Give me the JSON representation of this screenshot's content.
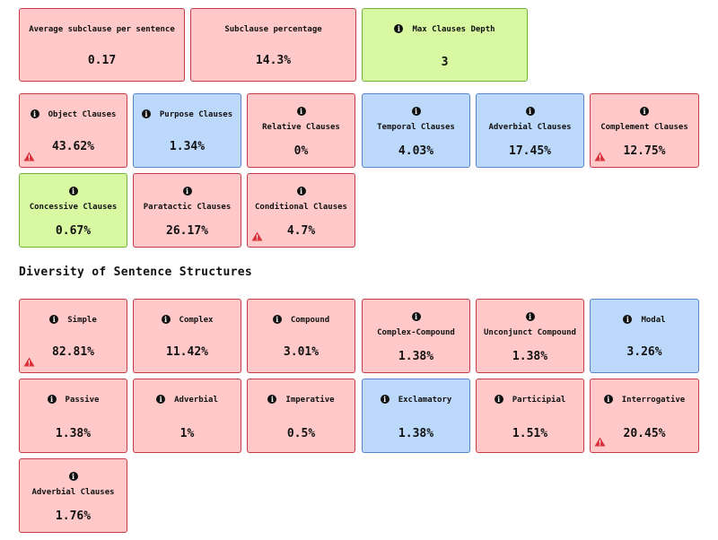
{
  "metrics_top": [
    {
      "label": "Average subclause per sentence",
      "value": "0.17",
      "color": "#ffc9c9"
    },
    {
      "label": "Subclause percentage",
      "value": "14.3%",
      "color": "#ffc9c9"
    },
    {
      "label": "Max Clauses Depth",
      "value": "3",
      "color": "#d8f9a1",
      "icon": "info-icon"
    }
  ],
  "clause_types": [
    {
      "label": "Object Clauses",
      "value": "43.62%",
      "status": "red",
      "icon": "info-icon",
      "warning": true
    },
    {
      "label": "Purpose Clauses",
      "value": "1.34%",
      "status": "blue",
      "icon": "info-icon"
    },
    {
      "label": "Relative Clauses",
      "value": "0%",
      "status": "red",
      "icon": "info-icon"
    },
    {
      "label": "Temporal Clauses",
      "value": "4.03%",
      "status": "blue",
      "icon": "info-icon"
    },
    {
      "label": "Adverbial Clauses",
      "value": "17.45%",
      "status": "blue",
      "icon": "info-icon"
    },
    {
      "label": "Complement Clauses",
      "value": "12.75%",
      "status": "red",
      "icon": "info-icon",
      "warning": true
    },
    {
      "label": "Concessive Clauses",
      "value": "0.67%",
      "status": "green",
      "icon": "info-icon"
    },
    {
      "label": "Paratactic Clauses",
      "value": "26.17%",
      "status": "red",
      "icon": "info-icon"
    },
    {
      "label": "Conditional Clauses",
      "value": "4.7%",
      "status": "red",
      "icon": "info-icon",
      "warning": true
    }
  ],
  "diversity": {
    "title": "Diversity of Sentence Structures",
    "items": [
      {
        "label": "Simple",
        "value": "82.81%",
        "status": "red",
        "icon": "info-icon",
        "warning": true
      },
      {
        "label": "Complex",
        "value": "11.42%",
        "status": "red",
        "icon": "info-icon"
      },
      {
        "label": "Compound",
        "value": "3.01%",
        "status": "red",
        "icon": "info-icon"
      },
      {
        "label": "Complex-Compound",
        "value": "1.38%",
        "status": "red",
        "icon": "info-icon"
      },
      {
        "label": "Unconjunct Compound",
        "value": "1.38%",
        "status": "red",
        "icon": "info-icon"
      },
      {
        "label": "Modal",
        "value": "3.26%",
        "status": "blue",
        "icon": "info-icon"
      },
      {
        "label": "Passive",
        "value": "1.38%",
        "status": "red",
        "icon": "info-icon"
      },
      {
        "label": "Adverbial",
        "value": "1%",
        "status": "red",
        "icon": "info-icon"
      },
      {
        "label": "Imperative",
        "value": "0.5%",
        "status": "red",
        "icon": "info-icon"
      },
      {
        "label": "Exclamatory",
        "value": "1.38%",
        "status": "blue",
        "icon": "info-icon"
      },
      {
        "label": "Participial",
        "value": "1.51%",
        "status": "red",
        "icon": "info-icon"
      },
      {
        "label": "Interrogative",
        "value": "20.45%",
        "status": "red",
        "icon": "info-icon",
        "warning": true
      },
      {
        "label": "Adverbial Clauses",
        "value": "1.76%",
        "status": "red",
        "icon": "info-icon"
      }
    ]
  },
  "colors": {
    "red_bg": "#ffc9c9",
    "red_border": "#c63b48",
    "blue_bg": "#bcd8fb",
    "blue_border": "#5b84c9",
    "green_bg": "#d8f9a1",
    "green_border": "#6fb33a",
    "warning": "#d9303a"
  }
}
